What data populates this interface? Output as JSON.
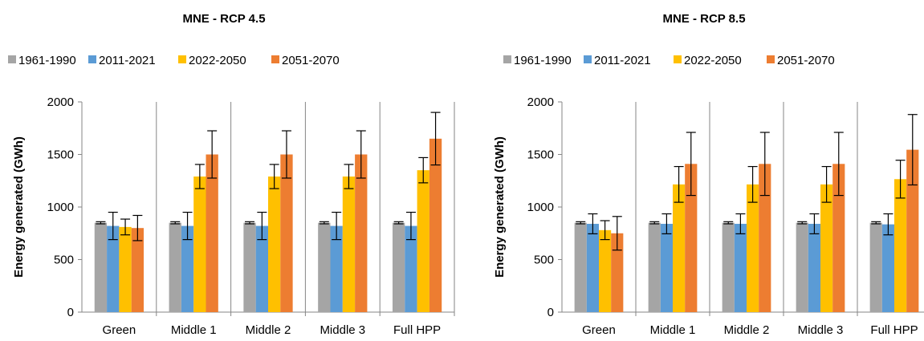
{
  "chart_data": [
    {
      "type": "bar",
      "title": "MNE - RCP 4.5",
      "xlabel": "",
      "ylabel": "Energy generated (GWh)",
      "ylim": [
        0,
        2000
      ],
      "yticks": [
        0,
        500,
        1000,
        1500,
        2000
      ],
      "grid": "vertical separators between categories",
      "legend": "top",
      "categories": [
        "Green",
        "Middle 1",
        "Middle 2",
        "Middle 3",
        "Full HPP"
      ],
      "series": [
        {
          "name": "1961-1990",
          "color": "#a5a5a5",
          "values": [
            850,
            850,
            850,
            850,
            850
          ],
          "error": [
            10,
            10,
            10,
            10,
            10
          ]
        },
        {
          "name": "2011-2021",
          "color": "#5b9bd5",
          "values": [
            820,
            820,
            820,
            820,
            820
          ],
          "error": [
            130,
            130,
            130,
            130,
            130
          ]
        },
        {
          "name": "2022-2050",
          "color": "#ffc000",
          "values": [
            810,
            1290,
            1290,
            1290,
            1350
          ],
          "error": [
            75,
            115,
            115,
            115,
            120
          ]
        },
        {
          "name": "2051-2070",
          "color": "#ed7d31",
          "values": [
            800,
            1500,
            1500,
            1500,
            1650
          ],
          "error": [
            120,
            225,
            225,
            225,
            250
          ]
        }
      ]
    },
    {
      "type": "bar",
      "title": "MNE - RCP 8.5",
      "xlabel": "",
      "ylabel": "Energy generated (GWh)",
      "ylim": [
        0,
        2000
      ],
      "yticks": [
        0,
        500,
        1000,
        1500,
        2000
      ],
      "grid": "vertical separators between categories",
      "legend": "top",
      "categories": [
        "Green",
        "Middle 1",
        "Middle 2",
        "Middle 3",
        "Full HPP"
      ],
      "series": [
        {
          "name": "1961-1990",
          "color": "#a5a5a5",
          "values": [
            850,
            850,
            850,
            850,
            850
          ],
          "error": [
            10,
            10,
            10,
            10,
            10
          ]
        },
        {
          "name": "2011-2021",
          "color": "#5b9bd5",
          "values": [
            840,
            840,
            840,
            840,
            835
          ],
          "error": [
            95,
            95,
            95,
            95,
            100
          ]
        },
        {
          "name": "2022-2050",
          "color": "#ffc000",
          "values": [
            780,
            1215,
            1215,
            1215,
            1265
          ],
          "error": [
            90,
            170,
            170,
            170,
            180
          ]
        },
        {
          "name": "2051-2070",
          "color": "#ed7d31",
          "values": [
            750,
            1410,
            1410,
            1410,
            1545
          ],
          "error": [
            160,
            300,
            300,
            300,
            335
          ]
        }
      ]
    }
  ]
}
